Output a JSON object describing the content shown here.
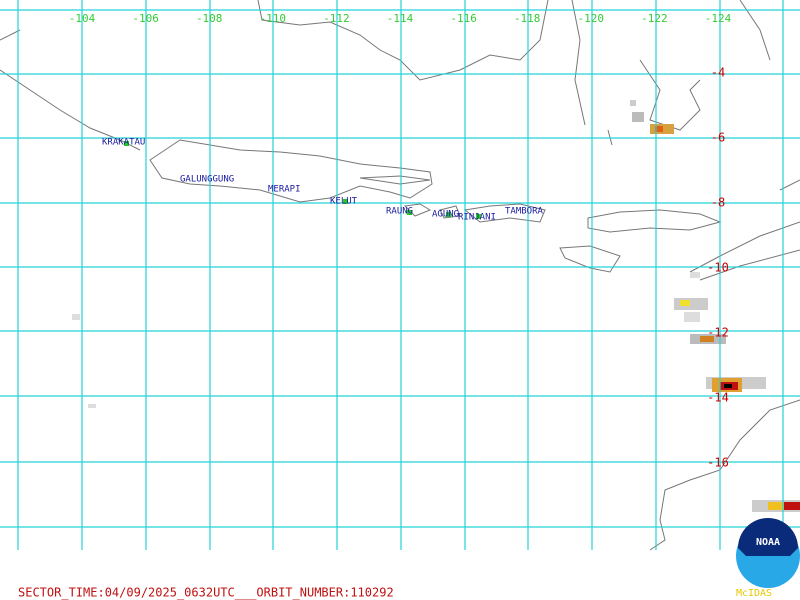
{
  "lon_labels": [
    "-104",
    "-106",
    "-108",
    "-110",
    "-112",
    "-114",
    "-116",
    "-118",
    "-120",
    "-122",
    "-124"
  ],
  "lat_labels": [
    "-4",
    "-6",
    "-8",
    "-10",
    "-12",
    "-14",
    "-16"
  ],
  "volcanoes": [
    "KRAKATAU",
    "GALUNGGUNG",
    "MERAPI",
    "KELUT",
    "RAUNG",
    "AGUNG",
    "RINJANI",
    "TAMBORA"
  ],
  "footer": "SECTOR_TIME:04/09/2025_0632UTC___ORBIT_NUMBER:110292",
  "logo": {
    "text": "NOAA",
    "caption": "McIDAS"
  }
}
